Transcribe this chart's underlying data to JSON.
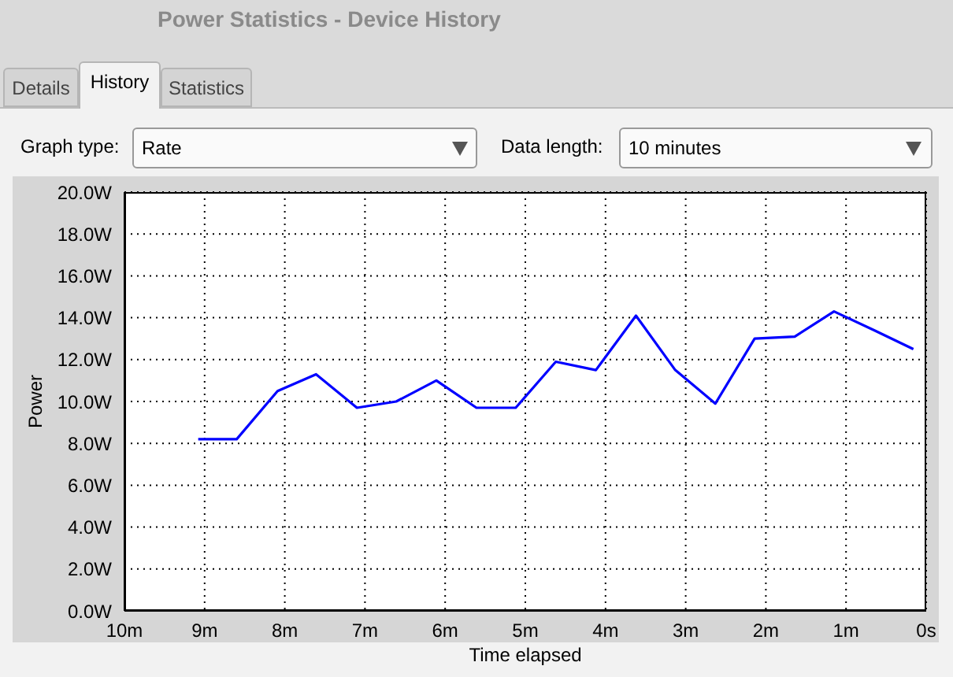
{
  "chart_data": {
    "type": "line",
    "title": "Power Statistics - Device History",
    "annotations": [
      "Details",
      "History",
      "Statistics",
      "Graph type:",
      "Rate",
      "Data length:",
      "10 minutes"
    ],
    "xlabel": "Time elapsed",
    "ylabel": "Power",
    "x": [
      9.08,
      8.6,
      8.09,
      7.61,
      7.1,
      6.61,
      6.11,
      5.61,
      5.12,
      4.62,
      4.12,
      3.62,
      3.13,
      2.63,
      2.14,
      1.64,
      1.15,
      0.65,
      0.16
    ],
    "series": [
      {
        "color": "#0000ff",
        "values": [
          8.2,
          8.2,
          10.5,
          11.3,
          9.7,
          10.0,
          11.0,
          9.7,
          9.7,
          11.9,
          11.5,
          14.1,
          11.5,
          9.9,
          13.0,
          13.1,
          14.3,
          13.4,
          12.5
        ]
      }
    ],
    "xlim": [
      10,
      0
    ],
    "xticks": [
      {
        "value": 10,
        "label": "10m"
      },
      {
        "value": 9,
        "label": "9m"
      },
      {
        "value": 8,
        "label": "8m"
      },
      {
        "value": 7,
        "label": "7m"
      },
      {
        "value": 6,
        "label": "6m"
      },
      {
        "value": 5,
        "label": "5m"
      },
      {
        "value": 4,
        "label": "4m"
      },
      {
        "value": 3,
        "label": "3m"
      },
      {
        "value": 2,
        "label": "2m"
      },
      {
        "value": 1,
        "label": "1m"
      },
      {
        "value": 0,
        "label": "0s"
      }
    ],
    "ylim": [
      0,
      20
    ],
    "yticks": [
      {
        "value": 0,
        "label": "0.0W"
      },
      {
        "value": 2,
        "label": "2.0W"
      },
      {
        "value": 4,
        "label": "4.0W"
      },
      {
        "value": 6,
        "label": "6.0W"
      },
      {
        "value": 8,
        "label": "8.0W"
      },
      {
        "value": 10,
        "label": "10.0W"
      },
      {
        "value": 12,
        "label": "12.0W"
      },
      {
        "value": 14,
        "label": "14.0W"
      },
      {
        "value": 16,
        "label": "16.0W"
      },
      {
        "value": 18,
        "label": "18.0W"
      },
      {
        "value": 20,
        "label": "20.0W"
      }
    ],
    "grid": true,
    "line_style": "solid",
    "marker": "none"
  }
}
